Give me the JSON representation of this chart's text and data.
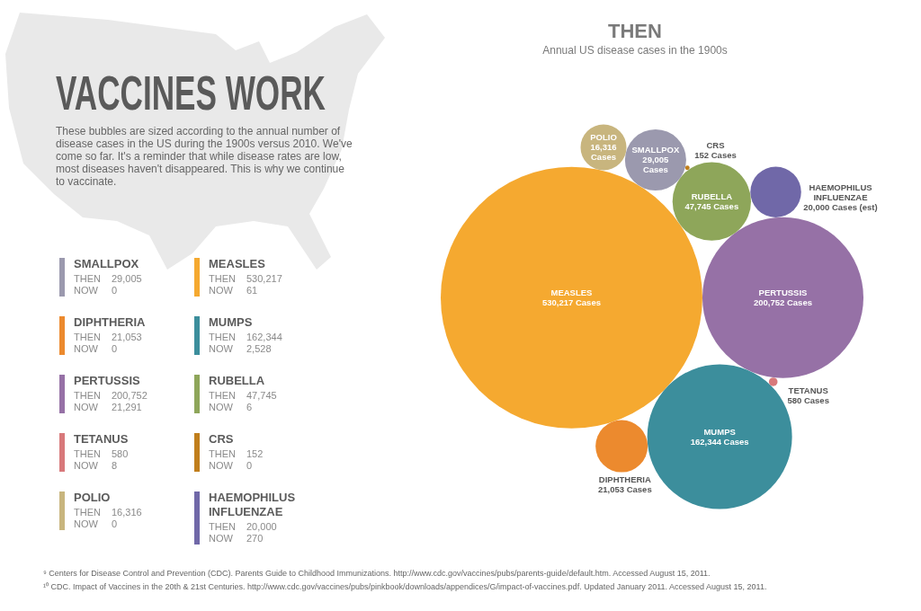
{
  "chart_data": [
    {
      "type": "other",
      "title": "VACCINES WORK",
      "subtitle": "These bubbles are sized according to the annual number of disease cases in the US during the 1900s versus 2010. We've come so far. It's a reminder that while disease rates are low, most diseases haven't disappeared. This is why we continue to vaccinate.",
      "categories": [
        "SMALLPOX",
        "MEASLES",
        "DIPHTHERIA",
        "MUMPS",
        "PERTUSSIS",
        "RUBELLA",
        "TETANUS",
        "CRS",
        "POLIO",
        "HAEMOPHILUS INFLUENZAE"
      ],
      "colors": [
        "#9b99ae",
        "#f5a930",
        "#ec8a2e",
        "#3c8e9c",
        "#9671a6",
        "#8ea65a",
        "#d8797b",
        "#c07e1c",
        "#c8b57e",
        "#7068a8"
      ],
      "series": [
        {
          "name": "THEN",
          "values": [
            29005,
            530217,
            21053,
            162344,
            200752,
            47745,
            580,
            152,
            16316,
            20000
          ],
          "value_labels": [
            "29,005",
            "530,217",
            "21,053",
            "162,344",
            "200,752",
            "47,745",
            "580",
            "152",
            "16,316",
            "20,000"
          ]
        },
        {
          "name": "NOW",
          "values": [
            0,
            61,
            0,
            2528,
            21291,
            6,
            8,
            0,
            0,
            270
          ],
          "value_labels": [
            "0",
            "61",
            "0",
            "2,528",
            "21,291",
            "6",
            "8",
            "0",
            "0",
            "270"
          ]
        }
      ]
    },
    {
      "type": "other",
      "title": "THEN",
      "subtitle": "Annual US disease cases in the 1900s",
      "categories": [
        "SMALLPOX",
        "MEASLES",
        "DIPHTHERIA",
        "MUMPS",
        "PERTUSSIS",
        "RUBELLA",
        "TETANUS",
        "CRS",
        "POLIO",
        "HAEMOPHILUS INFLUENZAE"
      ],
      "values": [
        29005,
        530217,
        21053,
        162344,
        200752,
        47745,
        580,
        152,
        16316,
        20000
      ],
      "colors": [
        "#9b99ae",
        "#f5a930",
        "#ec8a2e",
        "#3c8e9c",
        "#9671a6",
        "#8ea65a",
        "#d8797b",
        "#c07e1c",
        "#c8b57e",
        "#7068a8"
      ],
      "value_labels": [
        "29,005 Cases",
        "530,217 Cases",
        "21,053 Cases",
        "162,344 Cases",
        "200,752 Cases",
        "47,745 Cases",
        "580 Cases",
        "152 Cases",
        "16,316 Cases",
        "20,000 Cases (est)"
      ],
      "annotations": [
        "⁹ Centers for Disease Control and Prevention (CDC). Parents Guide to Childhood Immunizations. http://www.cdc.gov/vaccines/pubs/parents-guide/default.htm. Accessed August 15, 2011.",
        "¹⁰ CDC. Impact of Vaccines in the 20th & 21st Centuries. http://www.cdc.gov/vaccines/pubs/pinkbook/downloads/appendices/G/impact-of-vaccines.pdf. Updated January 2011. Accessed August 15, 2011."
      ]
    }
  ]
}
